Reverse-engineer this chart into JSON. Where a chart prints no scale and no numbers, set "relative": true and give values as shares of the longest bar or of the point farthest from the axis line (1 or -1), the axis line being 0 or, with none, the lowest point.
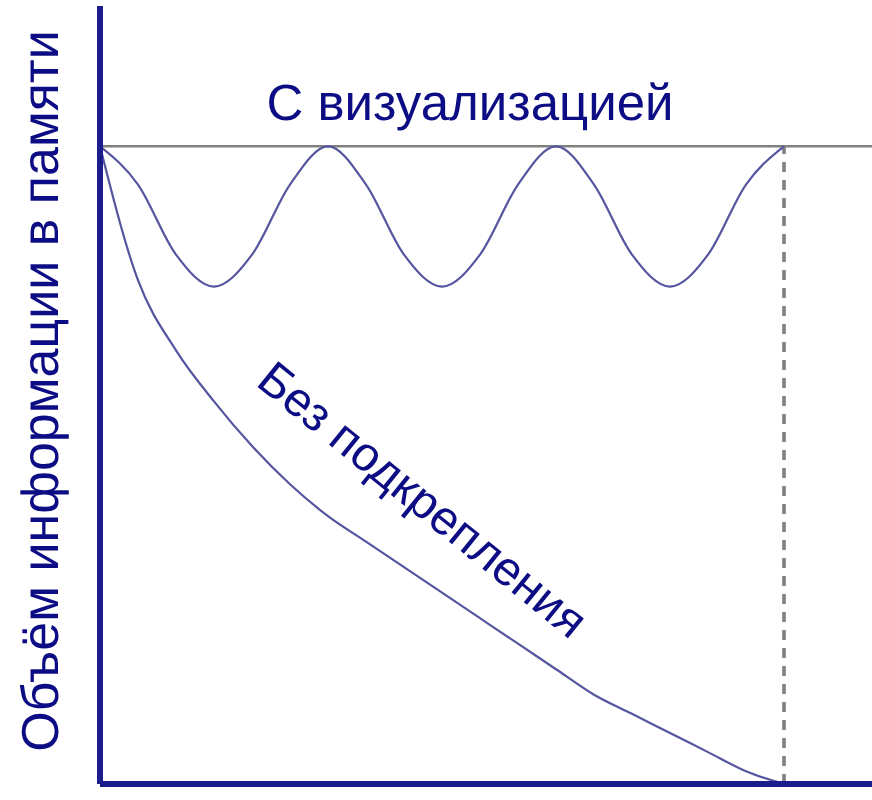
{
  "chart_data": {
    "type": "line",
    "relative": true,
    "ylabel": "Объём информации в памяти",
    "categories": [
      null,
      null,
      null,
      null,
      null,
      null,
      null,
      null,
      null,
      null,
      null,
      null,
      null,
      null,
      null,
      null,
      null,
      null,
      null
    ],
    "series": [
      {
        "name": "С визуализацией",
        "color": "#5555a0",
        "values": [
          1,
          0.94,
          0.83,
          0.78,
          0.83,
          0.94,
          1,
          0.94,
          0.83,
          0.78,
          0.83,
          0.94,
          1,
          0.94,
          0.83,
          0.78,
          0.83,
          0.94,
          1
        ]
      },
      {
        "name": "Без подкрепления",
        "color": "#5555a0",
        "values": [
          1,
          0.79,
          0.68,
          0.6,
          0.53,
          0.47,
          0.42,
          0.38,
          0.34,
          0.3,
          0.26,
          0.22,
          0.18,
          0.14,
          0.11,
          0.08,
          0.05,
          0.02,
          0
        ]
      }
    ],
    "ref_lines": [
      {
        "axis": "y",
        "value": 1,
        "color": "#808080",
        "line_style": "solid"
      }
    ],
    "grid": false,
    "legend": false
  }
}
